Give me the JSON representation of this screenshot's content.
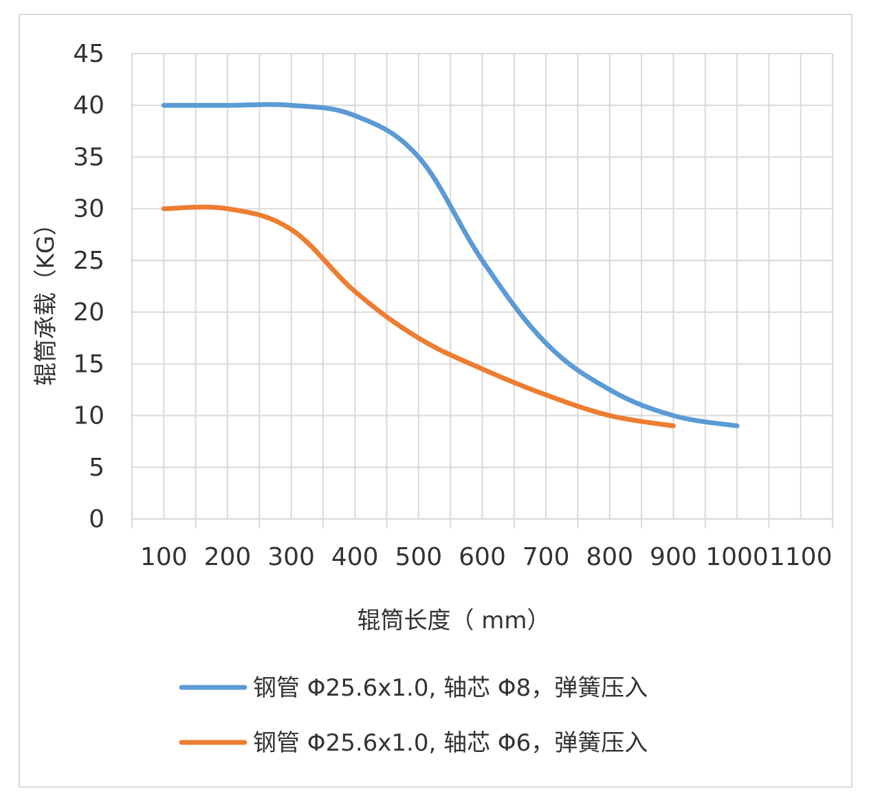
{
  "chart_data": {
    "type": "line",
    "title": "",
    "xlabel": "辊筒长度（  mm）",
    "ylabel": "辊筒承载（KG）",
    "categories": [
      "100",
      "200",
      "300",
      "400",
      "500",
      "600",
      "700",
      "800",
      "900",
      "1000",
      "1100"
    ],
    "ylim": [
      0,
      45
    ],
    "yticks": [
      0,
      5,
      10,
      15,
      20,
      25,
      30,
      35,
      40,
      45
    ],
    "grid": true,
    "legend_position": "bottom",
    "series": [
      {
        "name": "钢管 Φ25.6x1.0, 轴芯 Φ8，弹簧压入",
        "color": "#5b9bd5",
        "values": [
          40,
          40,
          40,
          39,
          35,
          25,
          17,
          12.5,
          10,
          9,
          null
        ]
      },
      {
        "name": "钢管 Φ25.6x1.0, 轴芯 Φ6，弹簧压入",
        "color": "#ed7d31",
        "values": [
          30,
          30,
          28,
          22,
          17.5,
          14.5,
          12,
          10,
          9,
          null,
          null
        ]
      }
    ]
  }
}
